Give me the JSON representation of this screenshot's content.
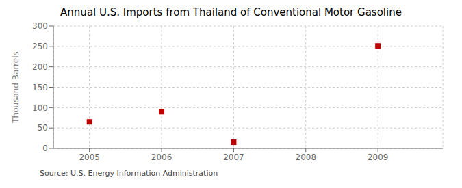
{
  "chart_data": {
    "type": "scatter",
    "title": "Annual U.S. Imports from Thailand of Conventional Motor Gasoline",
    "ylabel": "Thousand Barrels",
    "annotation": "Source: U.S. Energy Information Administration",
    "x": [
      2005,
      2006,
      2007,
      2008,
      2009
    ],
    "values": [
      65,
      90,
      15,
      null,
      251
    ],
    "xlim": [
      2004.5,
      2009.9
    ],
    "xticks": [
      2005,
      2006,
      2007,
      2008,
      2009
    ],
    "ylim": [
      0,
      300
    ],
    "yticks": [
      0,
      50,
      100,
      150,
      200,
      250,
      300
    ],
    "color": "#bb0000",
    "marker": "square",
    "grid": true
  }
}
